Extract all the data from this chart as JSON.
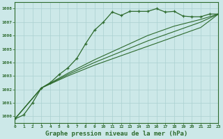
{
  "title": "Graphe pression niveau de la mer (hPa)",
  "background_color": "#cce8e8",
  "grid_color": "#aad0d0",
  "line_color": "#2d6a2d",
  "xlim": [
    0,
    23
  ],
  "ylim": [
    999.5,
    1008.5
  ],
  "yticks": [
    1000,
    1001,
    1002,
    1003,
    1004,
    1005,
    1006,
    1007,
    1008
  ],
  "xticks": [
    0,
    1,
    2,
    3,
    4,
    5,
    6,
    7,
    8,
    9,
    10,
    11,
    12,
    13,
    14,
    15,
    16,
    17,
    18,
    19,
    20,
    21,
    22,
    23
  ],
  "series1": [
    [
      0,
      999.8
    ],
    [
      1,
      1000.1
    ],
    [
      2,
      1001.0
    ],
    [
      3,
      1002.1
    ],
    [
      4,
      1002.5
    ],
    [
      5,
      1003.1
    ],
    [
      6,
      1003.6
    ],
    [
      7,
      1004.3
    ],
    [
      8,
      1005.4
    ],
    [
      9,
      1006.4
    ],
    [
      10,
      1007.0
    ],
    [
      11,
      1007.75
    ],
    [
      12,
      1007.5
    ],
    [
      13,
      1007.8
    ],
    [
      14,
      1007.8
    ],
    [
      15,
      1007.8
    ],
    [
      16,
      1008.0
    ],
    [
      17,
      1007.75
    ],
    [
      18,
      1007.8
    ],
    [
      19,
      1007.45
    ],
    [
      20,
      1007.4
    ],
    [
      21,
      1007.4
    ],
    [
      22,
      1007.6
    ],
    [
      23,
      1007.6
    ]
  ],
  "series2": [
    [
      0,
      999.8
    ],
    [
      3,
      1002.1
    ],
    [
      6,
      1003.0
    ],
    [
      9,
      1003.8
    ],
    [
      12,
      1004.5
    ],
    [
      15,
      1005.2
    ],
    [
      18,
      1005.9
    ],
    [
      21,
      1006.6
    ],
    [
      23,
      1007.6
    ]
  ],
  "series3": [
    [
      0,
      999.8
    ],
    [
      3,
      1002.1
    ],
    [
      6,
      1003.1
    ],
    [
      9,
      1004.0
    ],
    [
      12,
      1004.8
    ],
    [
      15,
      1005.6
    ],
    [
      18,
      1006.3
    ],
    [
      21,
      1007.0
    ],
    [
      23,
      1007.6
    ]
  ],
  "series4": [
    [
      0,
      999.8
    ],
    [
      3,
      1002.1
    ],
    [
      6,
      1003.2
    ],
    [
      9,
      1004.2
    ],
    [
      12,
      1005.1
    ],
    [
      15,
      1006.0
    ],
    [
      18,
      1006.7
    ],
    [
      21,
      1007.2
    ],
    [
      23,
      1007.6
    ]
  ]
}
